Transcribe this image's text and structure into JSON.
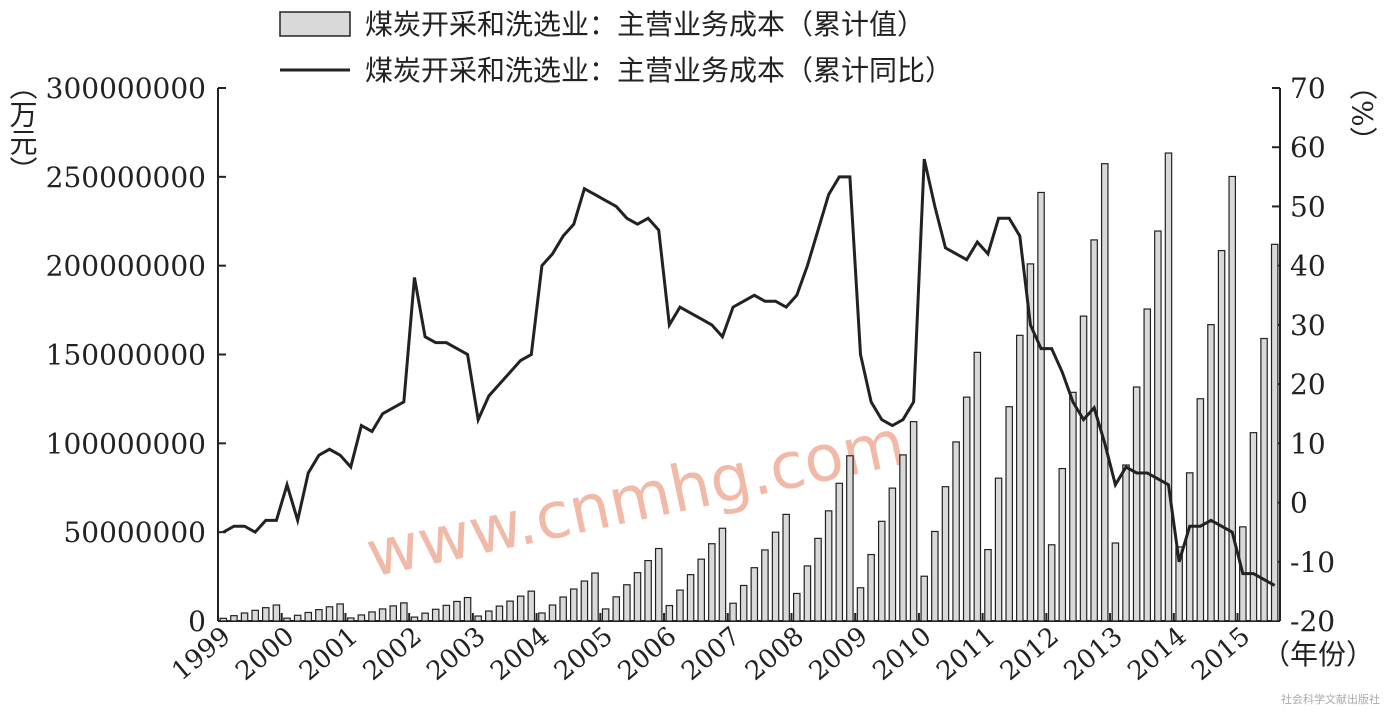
{
  "chart_data": {
    "type": "bar",
    "y_label": "（万元）",
    "y2_label": "（%）",
    "x_label": "（年份）",
    "watermark": "www.cnmhg.com",
    "source": "社会科学文献出版社",
    "categories": [
      "1999",
      null,
      null,
      null,
      null,
      null,
      "2000",
      null,
      null,
      null,
      null,
      null,
      "2001",
      null,
      null,
      null,
      null,
      null,
      "2002",
      null,
      null,
      null,
      null,
      null,
      "2003",
      null,
      null,
      null,
      null,
      null,
      "2004",
      null,
      null,
      null,
      null,
      null,
      "2005",
      null,
      null,
      null,
      null,
      null,
      "2006",
      null,
      null,
      null,
      null,
      null,
      "2007",
      null,
      null,
      null,
      null,
      null,
      "2008",
      null,
      null,
      null,
      null,
      null,
      "2009",
      null,
      null,
      null,
      null,
      null,
      "2010",
      null,
      null,
      null,
      null,
      null,
      "2011",
      null,
      null,
      null,
      null,
      null,
      "2012",
      null,
      null,
      null,
      null,
      null,
      "2013",
      null,
      null,
      null,
      null,
      null,
      "2014",
      null,
      null,
      null,
      null,
      null,
      "2015",
      null,
      null,
      null
    ],
    "series": [
      {
        "name": "煤炭开采和洗选业：主营业务成本（累计值）",
        "type": "bar",
        "color": "#d9d9d9",
        "values": [
          1500000,
          3000000,
          4500000,
          6000000,
          7500000,
          9000000,
          1600000,
          3200000,
          4800000,
          6400000,
          8000000,
          9600000,
          1700000,
          3400000,
          5100000,
          6800000,
          8500000,
          10200000,
          2200000,
          4400000,
          6600000,
          8800000,
          11000000,
          13200000,
          2800000,
          5600000,
          8400000,
          11200000,
          14000000,
          16800000,
          4500000,
          9000000,
          13500000,
          18000000,
          22500000,
          27000000,
          6800000,
          13600000,
          20400000,
          27200000,
          34000000,
          40800000,
          8700000,
          17400000,
          26100000,
          34800000,
          43500000,
          52200000,
          10000000,
          20000000,
          30000000,
          40000000,
          50000000,
          60000000,
          15500000,
          31000000,
          46500000,
          62000000,
          77500000,
          93000000,
          18700000,
          37400000,
          56100000,
          74800000,
          93500000,
          112200000,
          25200000,
          50400000,
          75600000,
          100800000,
          126000000,
          151200000,
          40200000,
          80400000,
          120600000,
          160800000,
          201000000,
          241200000,
          42900000,
          85800000,
          128700000,
          171600000,
          214500000,
          257400000,
          43900000,
          87800000,
          131700000,
          175600000,
          219500000,
          263400000,
          41700000,
          83400000,
          125100000,
          166800000,
          208500000,
          250200000,
          53000000,
          106000000,
          159000000,
          212000000
        ]
      },
      {
        "name": "煤炭开采和洗选业：主营业务成本（累计同比）",
        "type": "line",
        "axis": "y2",
        "color": "#222222",
        "values": [
          -5,
          -4,
          -4,
          -5,
          -3,
          -3,
          3,
          -3,
          5,
          8,
          9,
          8,
          6,
          13,
          12,
          15,
          16,
          17,
          38,
          28,
          27,
          27,
          26,
          25,
          14,
          18,
          20,
          22,
          24,
          25,
          40,
          42,
          45,
          47,
          53,
          52,
          51,
          50,
          48,
          47,
          48,
          46,
          30,
          33,
          32,
          31,
          30,
          28,
          33,
          34,
          35,
          34,
          34,
          33,
          35,
          40,
          46,
          52,
          55,
          55,
          25,
          17,
          14,
          13,
          14,
          17,
          58,
          50,
          43,
          42,
          41,
          44,
          42,
          48,
          48,
          45,
          30,
          26,
          26,
          22,
          17,
          14,
          16,
          10,
          3,
          6,
          5,
          5,
          4,
          3,
          -10,
          -4,
          -4,
          -3,
          -4,
          -5,
          -12,
          -12,
          -13,
          -14
        ]
      }
    ],
    "ylim": [
      0,
      300000000
    ],
    "yticks": [
      0,
      50000000,
      100000000,
      150000000,
      200000000,
      250000000,
      300000000
    ],
    "y2lim": [
      -20,
      70
    ],
    "y2ticks": [
      -20,
      -10,
      0,
      10,
      20,
      30,
      40,
      50,
      60,
      70
    ]
  }
}
